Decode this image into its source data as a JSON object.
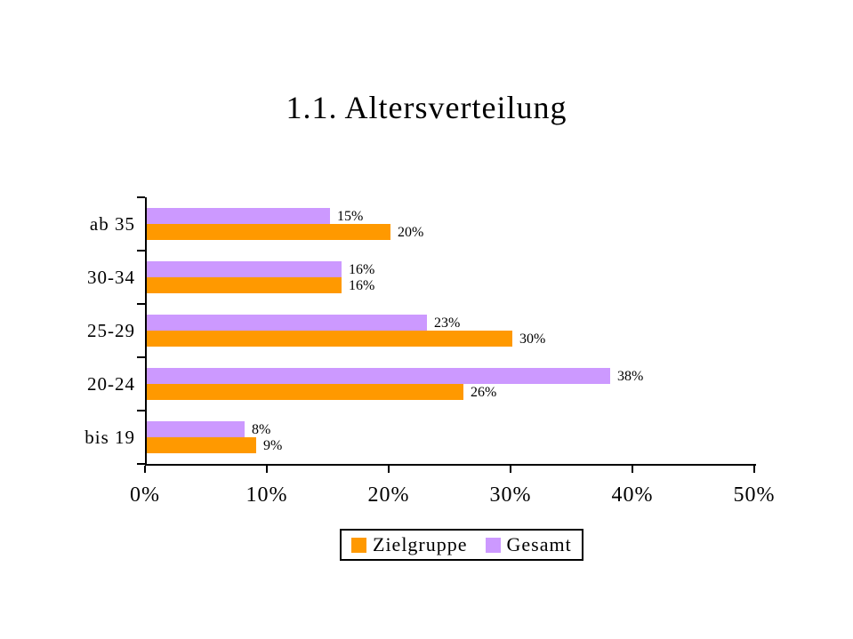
{
  "chart_data": {
    "type": "bar",
    "orientation": "horizontal",
    "title": "1.1. Altersverteilung",
    "categories": [
      "ab 35",
      "30-34",
      "25-29",
      "20-24",
      "bis 19"
    ],
    "series": [
      {
        "name": "Zielgruppe",
        "color": "#FF9900",
        "values": [
          20,
          16,
          30,
          26,
          9
        ],
        "labels": [
          "20%",
          "16%",
          "30%",
          "26%",
          "9%"
        ]
      },
      {
        "name": "Gesamt",
        "color": "#CC99FF",
        "values": [
          15,
          16,
          23,
          38,
          8
        ],
        "labels": [
          "15%",
          "16%",
          "23%",
          "38%",
          "8%"
        ]
      }
    ],
    "group_order_top_to_bottom": [
      "Gesamt",
      "Zielgruppe"
    ],
    "value_suffix": "%",
    "xlim": [
      0,
      50
    ],
    "x_ticks": [
      "0%",
      "10%",
      "20%",
      "30%",
      "40%",
      "50%"
    ],
    "x_tick_values": [
      0,
      10,
      20,
      30,
      40,
      50
    ],
    "ylabel": "",
    "xlabel": "",
    "grid": false,
    "legend_position": "bottom",
    "background": "#FFFFFF",
    "axis_color": "#000000",
    "text_color": "#000000"
  }
}
